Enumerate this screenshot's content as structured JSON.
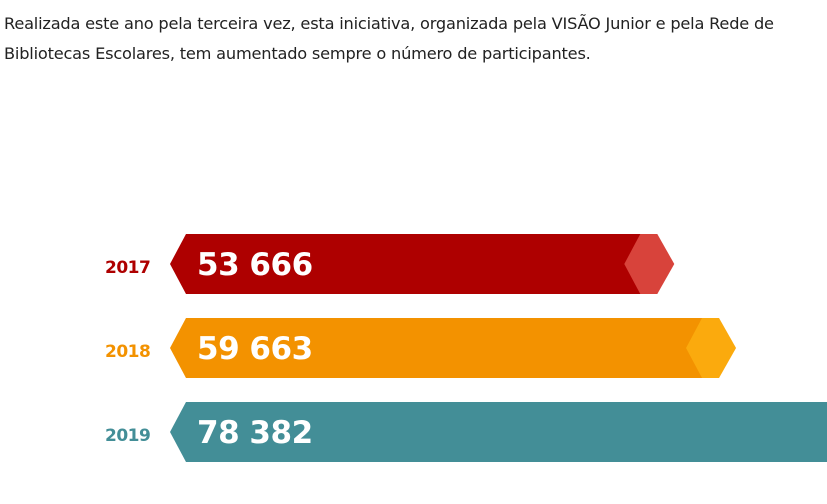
{
  "article": {
    "intro": "Realizada este ano pela terceira vez, esta iniciativa, organizada pela VISÃO Junior e pela Rede de Bibliotecas Escolares, tem aumentado sempre o número de participantes."
  },
  "chart_data": {
    "type": "bar",
    "orientation": "horizontal",
    "categories": [
      "2017",
      "2018",
      "2019"
    ],
    "values": [
      53666,
      59663,
      78382
    ],
    "value_labels": [
      "53 666",
      "59 663",
      "78 382"
    ],
    "title": "",
    "xlabel": "",
    "ylabel": "",
    "grid": false,
    "colors": [
      {
        "body": "#ae0000",
        "tip": "#d8433b",
        "label": "#ae0000"
      },
      {
        "body": "#f39200",
        "tip": "#fbaa0d",
        "label": "#f39200"
      },
      {
        "body": "#438e97",
        "tip": "#7eb4bc",
        "label": "#438e97"
      }
    ]
  }
}
